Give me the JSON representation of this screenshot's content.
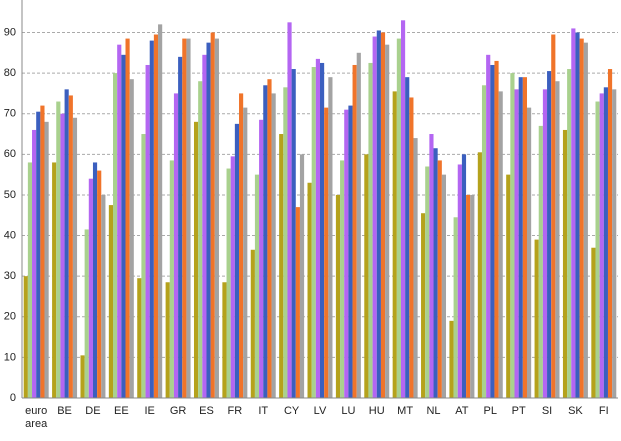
{
  "chart_data": {
    "type": "bar",
    "categories": [
      "euro area",
      "BE",
      "DE",
      "EE",
      "IE",
      "GR",
      "ES",
      "FR",
      "IT",
      "CY",
      "LV",
      "LU",
      "HU",
      "MT",
      "NL",
      "AT",
      "PL",
      "PT",
      "SI",
      "SK",
      "FI"
    ],
    "series": [
      {
        "color": "#b5a21c",
        "values": [
          30,
          58,
          10.5,
          47.5,
          29.5,
          28.5,
          68,
          28.5,
          36.5,
          65,
          53,
          50,
          60,
          75.5,
          45.5,
          19,
          60.5,
          55,
          39,
          66,
          37
        ]
      },
      {
        "color": "#a9d18e",
        "values": [
          58,
          73,
          41.5,
          80,
          65,
          58.5,
          78,
          56.5,
          55,
          76.5,
          81.5,
          58.5,
          82.5,
          88.5,
          57,
          44.5,
          77,
          80,
          67,
          81,
          73
        ]
      },
      {
        "color": "#b466f2",
        "values": [
          66,
          70,
          54,
          87,
          82,
          75,
          84.5,
          59.5,
          68.5,
          92.5,
          83.5,
          71,
          89,
          93,
          65,
          57.5,
          84.5,
          76,
          76,
          91,
          75
        ]
      },
      {
        "color": "#3b5fbf",
        "values": [
          70.5,
          76,
          58,
          84.5,
          88,
          84,
          87.5,
          67.5,
          77,
          81,
          82.5,
          72,
          90.5,
          79,
          61.5,
          60,
          82,
          79,
          80.5,
          90,
          76.5
        ]
      },
      {
        "color": "#f0742a",
        "values": [
          72,
          74.5,
          56,
          88.5,
          89.5,
          88.5,
          90,
          75,
          78.5,
          47,
          71.5,
          82,
          90,
          74,
          58.5,
          50,
          83,
          79,
          89.5,
          88.5,
          81
        ]
      },
      {
        "color": "#a3a3a3",
        "values": [
          68,
          69,
          50,
          78.5,
          92,
          88.5,
          88.5,
          71.5,
          75,
          60,
          79,
          85,
          87,
          64,
          55,
          50,
          75.5,
          71.5,
          78,
          87.5,
          76
        ]
      }
    ],
    "ylim": [
      0,
      98
    ],
    "yticks": [
      0,
      10,
      20,
      30,
      40,
      50,
      60,
      70,
      80,
      90
    ],
    "grid": true
  }
}
